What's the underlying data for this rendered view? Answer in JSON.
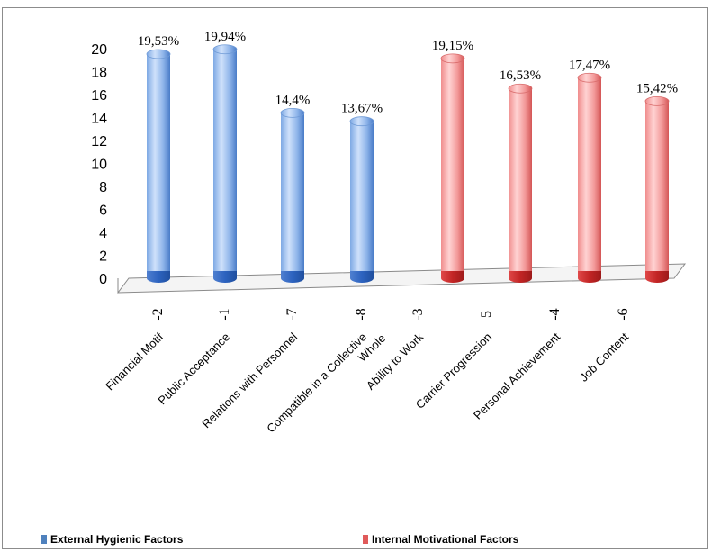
{
  "chart_data": {
    "type": "bar",
    "ylim": [
      0,
      20
    ],
    "yticks": [
      "0",
      "2",
      "4",
      "6",
      "8",
      "10",
      "12",
      "14",
      "16",
      "18",
      "20"
    ],
    "categories": [
      {
        "label": "Financial Motif",
        "code": "-2",
        "value": 19.53,
        "value_label": "19,53%",
        "series": "External Hygienic Factors"
      },
      {
        "label": "Public Acceptance",
        "code": "-1",
        "value": 19.94,
        "value_label": "19,94%",
        "series": "External Hygienic Factors"
      },
      {
        "label": "Relations with Personnel",
        "code": "-7",
        "value": 14.4,
        "value_label": "14,4%",
        "series": "External Hygienic Factors"
      },
      {
        "label": "Compatible in a Collective Whole",
        "code": "-8",
        "value": 13.67,
        "value_label": "13,67%",
        "series": "External Hygienic Factors"
      },
      {
        "label": "Ability to Work",
        "code": "-3",
        "value": 0,
        "value_label": "",
        "series": "External Hygienic Factors"
      },
      {
        "label": "Carrier Progression",
        "code": "5",
        "value": 19.15,
        "value_label": "19,15%",
        "series": "Internal Motivational Factors"
      },
      {
        "label": "Personal Achievement",
        "code": "-4",
        "value": 16.53,
        "value_label": "16,53%",
        "series": "Internal Motivational Factors"
      },
      {
        "label": "Job Content",
        "code": "-6",
        "value": 17.47,
        "value_label": "17,47%",
        "series": "Internal Motivational Factors"
      },
      {
        "label": "",
        "code": "",
        "value": 15.42,
        "value_label": "15,42%",
        "series": "Internal Motivational Factors"
      }
    ],
    "series": [
      {
        "name": "External Hygienic Factors",
        "color": "#4f81bd"
      },
      {
        "name": "Internal Motivational Factors",
        "color": "#e05a5a"
      }
    ],
    "grid": false,
    "legend_position": "bottom"
  },
  "legend": {
    "items": [
      {
        "name": "External Hygienic Factors",
        "color": "#4f81bd"
      },
      {
        "name": "Internal Motivational Factors",
        "color": "#e05a5a"
      }
    ]
  }
}
